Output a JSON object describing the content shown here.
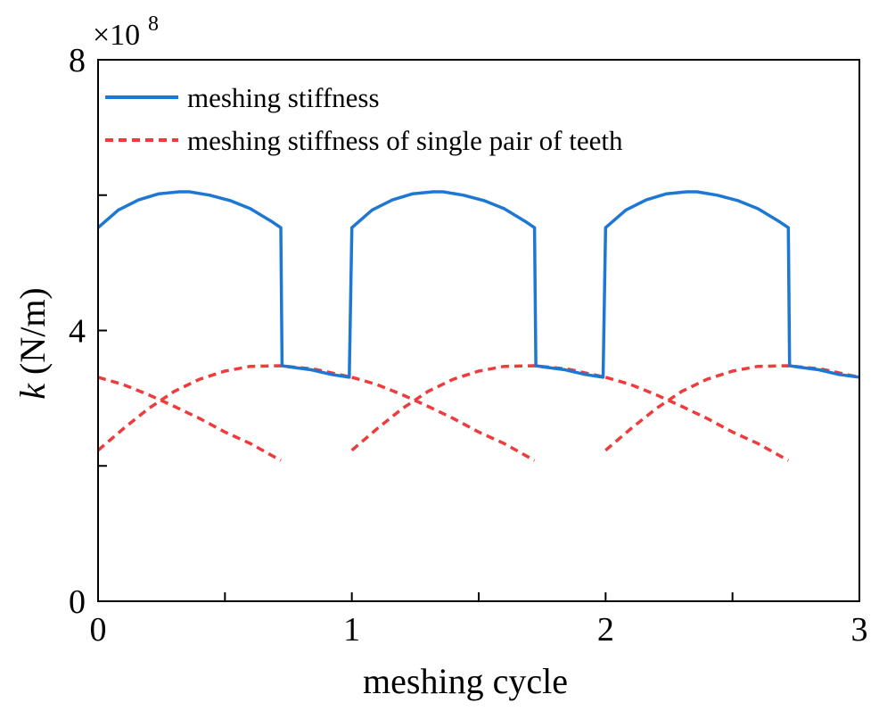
{
  "chart_data": {
    "type": "line",
    "xlabel": "meshing cycle",
    "ylabel_italic": "k",
    "ylabel_rest": " (N/m)",
    "y_scale_base": "×10",
    "y_scale_exponent": "8",
    "xlim": [
      0,
      3
    ],
    "ylim": [
      0,
      8
    ],
    "x_ticks": [
      0,
      0.5,
      1,
      1.5,
      2,
      2.5,
      3
    ],
    "x_tick_labels": [
      "0",
      "",
      "1",
      "",
      "2",
      "",
      "3"
    ],
    "y_ticks": [
      0,
      2,
      4,
      6,
      8
    ],
    "y_tick_labels": [
      "0",
      "",
      "4",
      "",
      "8"
    ],
    "legend_position": "top-left",
    "colors": {
      "blue": "#1f77d4",
      "red": "#ee3b3b"
    },
    "series": [
      {
        "name": "meshing stiffness",
        "style": "solid",
        "color": "#1f77d4",
        "x": [
          0,
          0.08,
          0.16,
          0.24,
          0.32,
          0.36,
          0.44,
          0.52,
          0.6,
          0.68,
          0.72,
          0.725,
          0.76,
          0.84,
          0.92,
          0.99,
          1.0,
          1.08,
          1.16,
          1.24,
          1.32,
          1.36,
          1.44,
          1.52,
          1.6,
          1.68,
          1.72,
          1.725,
          1.76,
          1.84,
          1.92,
          1.99,
          2.0,
          2.08,
          2.16,
          2.24,
          2.32,
          2.36,
          2.44,
          2.52,
          2.6,
          2.68,
          2.72,
          2.725,
          2.76,
          2.84,
          2.92,
          3.0
        ],
        "y": [
          5.52,
          5.78,
          5.93,
          6.02,
          6.05,
          6.05,
          6.0,
          5.92,
          5.8,
          5.62,
          5.52,
          3.48,
          3.46,
          3.42,
          3.35,
          3.31,
          5.52,
          5.78,
          5.93,
          6.02,
          6.05,
          6.05,
          6.0,
          5.92,
          5.8,
          5.62,
          5.52,
          3.48,
          3.46,
          3.42,
          3.35,
          3.31,
          5.52,
          5.78,
          5.93,
          6.02,
          6.05,
          6.05,
          6.0,
          5.92,
          5.8,
          5.62,
          5.52,
          3.48,
          3.46,
          3.42,
          3.35,
          3.31
        ]
      },
      {
        "name": "meshing stiffness of single pair of teeth",
        "style": "dashed",
        "color": "#ee3b3b",
        "segments": [
          {
            "x": [
              0,
              0.1,
              0.2,
              0.3,
              0.4,
              0.5,
              0.6,
              0.72
            ],
            "y": [
              3.31,
              3.2,
              3.05,
              2.88,
              2.7,
              2.5,
              2.33,
              2.08
            ]
          },
          {
            "x": [
              0,
              0.1,
              0.2,
              0.3,
              0.4,
              0.5,
              0.6,
              0.72,
              0.85,
              1.0
            ],
            "y": [
              2.23,
              2.55,
              2.85,
              3.1,
              3.28,
              3.4,
              3.47,
              3.48,
              3.43,
              3.31
            ]
          },
          {
            "x": [
              1.0,
              1.1,
              1.2,
              1.3,
              1.4,
              1.5,
              1.6,
              1.72
            ],
            "y": [
              3.31,
              3.2,
              3.05,
              2.88,
              2.7,
              2.5,
              2.33,
              2.08
            ]
          },
          {
            "x": [
              1.0,
              1.1,
              1.2,
              1.3,
              1.4,
              1.5,
              1.6,
              1.72,
              1.85,
              2.0
            ],
            "y": [
              2.23,
              2.55,
              2.85,
              3.1,
              3.28,
              3.4,
              3.47,
              3.48,
              3.43,
              3.31
            ]
          },
          {
            "x": [
              2.0,
              2.1,
              2.2,
              2.3,
              2.4,
              2.5,
              2.6,
              2.72
            ],
            "y": [
              3.31,
              3.2,
              3.05,
              2.88,
              2.7,
              2.5,
              2.33,
              2.08
            ]
          },
          {
            "x": [
              2.0,
              2.1,
              2.2,
              2.3,
              2.4,
              2.5,
              2.6,
              2.72,
              2.85,
              3.0
            ],
            "y": [
              2.23,
              2.55,
              2.85,
              3.1,
              3.28,
              3.4,
              3.47,
              3.48,
              3.43,
              3.31
            ]
          }
        ]
      }
    ]
  }
}
